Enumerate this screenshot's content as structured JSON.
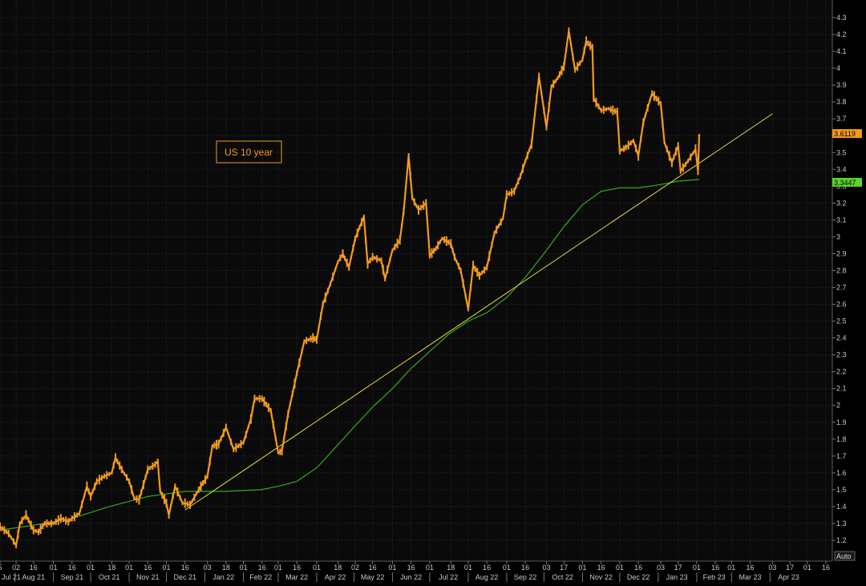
{
  "chart_data": {
    "type": "line",
    "annotation": "US 10 year",
    "auto_label": "Auto",
    "yticks": [
      "1.2",
      "1.3",
      "1.4",
      "1.5",
      "1.6",
      "1.7",
      "1.8",
      "1.9",
      "2",
      "2.1",
      "2.2",
      "2.3",
      "2.4",
      "2.5",
      "2.6",
      "2.7",
      "2.8",
      "2.9",
      "3",
      "3.1",
      "3.2",
      "3.3",
      "3.4",
      "3.5",
      "3.6",
      "3.7",
      "3.8",
      "3.9",
      "4",
      "4.1",
      "4.2",
      "4.3"
    ],
    "ylim": [
      1.1,
      4.35
    ],
    "xlim": [
      "2021-07-20",
      "2023-05-01"
    ],
    "day_ticks": [
      {
        "date": "2021-07-20",
        "label": "5"
      },
      {
        "date": "2021-08-02",
        "label": "02"
      },
      {
        "date": "2021-08-16",
        "label": "16"
      },
      {
        "date": "2021-09-01",
        "label": "01"
      },
      {
        "date": "2021-09-16",
        "label": "16"
      },
      {
        "date": "2021-10-01",
        "label": "01"
      },
      {
        "date": "2021-10-18",
        "label": "18"
      },
      {
        "date": "2021-11-01",
        "label": "01"
      },
      {
        "date": "2021-11-16",
        "label": "16"
      },
      {
        "date": "2021-12-01",
        "label": "01"
      },
      {
        "date": "2021-12-16",
        "label": "16"
      },
      {
        "date": "2022-01-03",
        "label": "03"
      },
      {
        "date": "2022-01-18",
        "label": "18"
      },
      {
        "date": "2022-02-01",
        "label": "01"
      },
      {
        "date": "2022-02-16",
        "label": "16"
      },
      {
        "date": "2022-03-01",
        "label": "01"
      },
      {
        "date": "2022-03-16",
        "label": "16"
      },
      {
        "date": "2022-04-01",
        "label": "01"
      },
      {
        "date": "2022-04-18",
        "label": "18"
      },
      {
        "date": "2022-05-02",
        "label": "02"
      },
      {
        "date": "2022-05-16",
        "label": "16"
      },
      {
        "date": "2022-06-01",
        "label": "01"
      },
      {
        "date": "2022-06-16",
        "label": "16"
      },
      {
        "date": "2022-07-01",
        "label": "01"
      },
      {
        "date": "2022-07-18",
        "label": "18"
      },
      {
        "date": "2022-08-01",
        "label": "01"
      },
      {
        "date": "2022-08-16",
        "label": "16"
      },
      {
        "date": "2022-09-01",
        "label": "01"
      },
      {
        "date": "2022-09-16",
        "label": "16"
      },
      {
        "date": "2022-10-03",
        "label": "03"
      },
      {
        "date": "2022-10-17",
        "label": "17"
      },
      {
        "date": "2022-11-01",
        "label": "01"
      },
      {
        "date": "2022-11-16",
        "label": "16"
      },
      {
        "date": "2022-12-01",
        "label": "01"
      },
      {
        "date": "2022-12-16",
        "label": "16"
      },
      {
        "date": "2023-01-03",
        "label": "03"
      },
      {
        "date": "2023-01-17",
        "label": "17"
      },
      {
        "date": "2023-02-01",
        "label": "01"
      },
      {
        "date": "2023-02-16",
        "label": "16"
      },
      {
        "date": "2023-03-01",
        "label": "01"
      },
      {
        "date": "2023-03-16",
        "label": "16"
      },
      {
        "date": "2023-04-03",
        "label": "03"
      },
      {
        "date": "2023-04-17",
        "label": "17"
      },
      {
        "date": "2023-05-01",
        "label": "01"
      },
      {
        "date": "2023-05-16",
        "label": "16"
      }
    ],
    "months": [
      {
        "date": "2021-07-20",
        "label": "Jul 21"
      },
      {
        "date": "2021-08-16",
        "label": "Aug 21"
      },
      {
        "date": "2021-09-16",
        "label": "Sep 21"
      },
      {
        "date": "2021-10-16",
        "label": "Oct 21"
      },
      {
        "date": "2021-11-16",
        "label": "Nov 21"
      },
      {
        "date": "2021-12-16",
        "label": "Dec 21"
      },
      {
        "date": "2022-01-16",
        "label": "Jan 22"
      },
      {
        "date": "2022-02-15",
        "label": "Feb 22"
      },
      {
        "date": "2022-03-16",
        "label": "Mar 22"
      },
      {
        "date": "2022-04-16",
        "label": "Apr 22"
      },
      {
        "date": "2022-05-16",
        "label": "May 22"
      },
      {
        "date": "2022-06-16",
        "label": "Jun 22"
      },
      {
        "date": "2022-07-16",
        "label": "Jul 22"
      },
      {
        "date": "2022-08-16",
        "label": "Aug 22"
      },
      {
        "date": "2022-09-16",
        "label": "Sep 22"
      },
      {
        "date": "2022-10-16",
        "label": "Oct 22"
      },
      {
        "date": "2022-11-16",
        "label": "Nov 22"
      },
      {
        "date": "2022-12-16",
        "label": "Dec 22"
      },
      {
        "date": "2023-01-16",
        "label": "Jan 23"
      },
      {
        "date": "2023-02-15",
        "label": "Feb 23"
      },
      {
        "date": "2023-03-16",
        "label": "Mar 23"
      },
      {
        "date": "2023-04-16",
        "label": "Apr 23"
      }
    ],
    "price_series": {
      "name": "US 10 year",
      "color": "#f39a1e",
      "last_value": "3.6119",
      "points": [
        [
          "2021-07-20",
          1.28
        ],
        [
          "2021-07-27",
          1.24
        ],
        [
          "2021-08-02",
          1.17
        ],
        [
          "2021-08-05",
          1.3
        ],
        [
          "2021-08-10",
          1.35
        ],
        [
          "2021-08-16",
          1.26
        ],
        [
          "2021-08-20",
          1.25
        ],
        [
          "2021-08-25",
          1.3
        ],
        [
          "2021-09-01",
          1.3
        ],
        [
          "2021-09-07",
          1.33
        ],
        [
          "2021-09-13",
          1.31
        ],
        [
          "2021-09-16",
          1.33
        ],
        [
          "2021-09-22",
          1.36
        ],
        [
          "2021-09-28",
          1.52
        ],
        [
          "2021-10-01",
          1.46
        ],
        [
          "2021-10-06",
          1.55
        ],
        [
          "2021-10-12",
          1.58
        ],
        [
          "2021-10-18",
          1.6
        ],
        [
          "2021-10-21",
          1.69
        ],
        [
          "2021-10-26",
          1.62
        ],
        [
          "2021-11-01",
          1.55
        ],
        [
          "2021-11-05",
          1.45
        ],
        [
          "2021-11-09",
          1.44
        ],
        [
          "2021-11-16",
          1.62
        ],
        [
          "2021-11-22",
          1.65
        ],
        [
          "2021-11-24",
          1.67
        ],
        [
          "2021-11-26",
          1.49
        ],
        [
          "2021-12-01",
          1.42
        ],
        [
          "2021-12-03",
          1.35
        ],
        [
          "2021-12-08",
          1.52
        ],
        [
          "2021-12-14",
          1.42
        ],
        [
          "2021-12-16",
          1.42
        ],
        [
          "2021-12-20",
          1.41
        ],
        [
          "2021-12-27",
          1.5
        ],
        [
          "2022-01-03",
          1.58
        ],
        [
          "2022-01-07",
          1.76
        ],
        [
          "2022-01-12",
          1.77
        ],
        [
          "2022-01-18",
          1.87
        ],
        [
          "2022-01-24",
          1.74
        ],
        [
          "2022-02-01",
          1.78
        ],
        [
          "2022-02-07",
          1.92
        ],
        [
          "2022-02-10",
          2.04
        ],
        [
          "2022-02-16",
          2.04
        ],
        [
          "2022-02-23",
          1.97
        ],
        [
          "2022-03-01",
          1.72
        ],
        [
          "2022-03-04",
          1.73
        ],
        [
          "2022-03-09",
          1.95
        ],
        [
          "2022-03-16",
          2.19
        ],
        [
          "2022-03-22",
          2.38
        ],
        [
          "2022-03-29",
          2.4
        ],
        [
          "2022-04-01",
          2.39
        ],
        [
          "2022-04-06",
          2.6
        ],
        [
          "2022-04-12",
          2.72
        ],
        [
          "2022-04-18",
          2.85
        ],
        [
          "2022-04-22",
          2.9
        ],
        [
          "2022-04-27",
          2.82
        ],
        [
          "2022-05-02",
          2.99
        ],
        [
          "2022-05-09",
          3.12
        ],
        [
          "2022-05-12",
          2.84
        ],
        [
          "2022-05-16",
          2.88
        ],
        [
          "2022-05-23",
          2.86
        ],
        [
          "2022-05-26",
          2.75
        ],
        [
          "2022-06-01",
          2.92
        ],
        [
          "2022-06-07",
          2.98
        ],
        [
          "2022-06-10",
          3.15
        ],
        [
          "2022-06-14",
          3.48
        ],
        [
          "2022-06-17",
          3.23
        ],
        [
          "2022-06-22",
          3.16
        ],
        [
          "2022-06-28",
          3.2
        ],
        [
          "2022-07-01",
          2.89
        ],
        [
          "2022-07-06",
          2.93
        ],
        [
          "2022-07-11",
          2.99
        ],
        [
          "2022-07-18",
          2.96
        ],
        [
          "2022-07-21",
          2.88
        ],
        [
          "2022-07-26",
          2.8
        ],
        [
          "2022-08-01",
          2.57
        ],
        [
          "2022-08-05",
          2.83
        ],
        [
          "2022-08-10",
          2.77
        ],
        [
          "2022-08-16",
          2.82
        ],
        [
          "2022-08-22",
          3.02
        ],
        [
          "2022-08-29",
          3.11
        ],
        [
          "2022-09-01",
          3.25
        ],
        [
          "2022-09-07",
          3.27
        ],
        [
          "2022-09-12",
          3.36
        ],
        [
          "2022-09-16",
          3.45
        ],
        [
          "2022-09-21",
          3.55
        ],
        [
          "2022-09-27",
          3.95
        ],
        [
          "2022-10-03",
          3.65
        ],
        [
          "2022-10-07",
          3.89
        ],
        [
          "2022-10-12",
          3.94
        ],
        [
          "2022-10-17",
          4.01
        ],
        [
          "2022-10-21",
          4.22
        ],
        [
          "2022-10-26",
          3.99
        ],
        [
          "2022-11-01",
          4.05
        ],
        [
          "2022-11-04",
          4.16
        ],
        [
          "2022-11-09",
          4.12
        ],
        [
          "2022-11-10",
          3.82
        ],
        [
          "2022-11-16",
          3.75
        ],
        [
          "2022-11-22",
          3.76
        ],
        [
          "2022-11-29",
          3.74
        ],
        [
          "2022-12-01",
          3.51
        ],
        [
          "2022-12-06",
          3.53
        ],
        [
          "2022-12-12",
          3.57
        ],
        [
          "2022-12-16",
          3.48
        ],
        [
          "2022-12-20",
          3.68
        ],
        [
          "2022-12-27",
          3.85
        ],
        [
          "2023-01-03",
          3.79
        ],
        [
          "2023-01-06",
          3.56
        ],
        [
          "2023-01-12",
          3.44
        ],
        [
          "2023-01-17",
          3.54
        ],
        [
          "2023-01-19",
          3.39
        ],
        [
          "2023-01-25",
          3.45
        ],
        [
          "2023-01-31",
          3.52
        ],
        [
          "2023-02-02",
          3.39
        ],
        [
          "2023-02-03",
          3.61
        ]
      ]
    },
    "moving_average": {
      "name": "",
      "color": "#36a822",
      "last_value": "3.3447",
      "points": [
        [
          "2021-07-20",
          1.26
        ],
        [
          "2021-08-16",
          1.29
        ],
        [
          "2021-09-16",
          1.33
        ],
        [
          "2021-10-16",
          1.4
        ],
        [
          "2021-11-16",
          1.46
        ],
        [
          "2021-12-16",
          1.49
        ],
        [
          "2022-01-16",
          1.49
        ],
        [
          "2022-02-15",
          1.5
        ],
        [
          "2022-03-01",
          1.52
        ],
        [
          "2022-03-16",
          1.55
        ],
        [
          "2022-04-01",
          1.63
        ],
        [
          "2022-04-16",
          1.75
        ],
        [
          "2022-05-02",
          1.88
        ],
        [
          "2022-05-16",
          1.99
        ],
        [
          "2022-06-01",
          2.1
        ],
        [
          "2022-06-16",
          2.22
        ],
        [
          "2022-07-01",
          2.32
        ],
        [
          "2022-07-16",
          2.42
        ],
        [
          "2022-08-01",
          2.5
        ],
        [
          "2022-08-16",
          2.55
        ],
        [
          "2022-09-01",
          2.64
        ],
        [
          "2022-09-16",
          2.76
        ],
        [
          "2022-10-03",
          2.92
        ],
        [
          "2022-10-17",
          3.06
        ],
        [
          "2022-11-01",
          3.19
        ],
        [
          "2022-11-16",
          3.27
        ],
        [
          "2022-12-01",
          3.29
        ],
        [
          "2022-12-16",
          3.29
        ],
        [
          "2023-01-03",
          3.31
        ],
        [
          "2023-01-17",
          3.33
        ],
        [
          "2023-02-03",
          3.34
        ]
      ]
    },
    "trendline": {
      "color": "#e6de3c",
      "start": [
        "2021-12-16",
        1.38
      ],
      "end": [
        "2023-04-03",
        3.73
      ]
    }
  }
}
